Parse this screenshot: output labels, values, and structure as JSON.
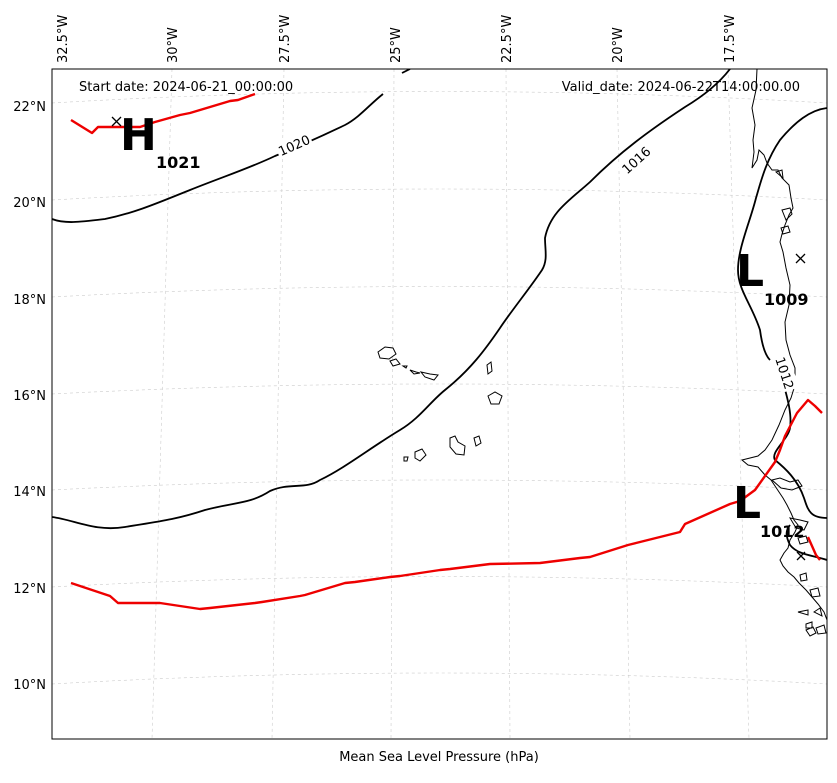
{
  "map": {
    "start_date": "Start date: 2024-06-21_00:00:00",
    "valid_date": "Valid_date: 2024-06-22T14:00:00.00",
    "caption": "Mean Sea Level Pressure (hPa)",
    "lon_labels": [
      "32.5°W",
      "30°W",
      "27.5°W",
      "25°W",
      "22.5°W",
      "20°W",
      "17.5°W"
    ],
    "lat_labels": [
      "22°N",
      "20°N",
      "18°N",
      "16°N",
      "14°N",
      "12°N",
      "10°N"
    ],
    "isobars": [
      {
        "label": "1020"
      },
      {
        "label": "1016"
      },
      {
        "label": "1012"
      }
    ],
    "pressure_centers": [
      {
        "type": "H",
        "value": "1021"
      },
      {
        "type": "L",
        "value": "1009"
      },
      {
        "type": "L",
        "value": "1012"
      }
    ],
    "colors": {
      "isobar": "#000000",
      "storm_track": "#ee0000",
      "grid": "#cccccc",
      "background": "#ffffff"
    }
  }
}
